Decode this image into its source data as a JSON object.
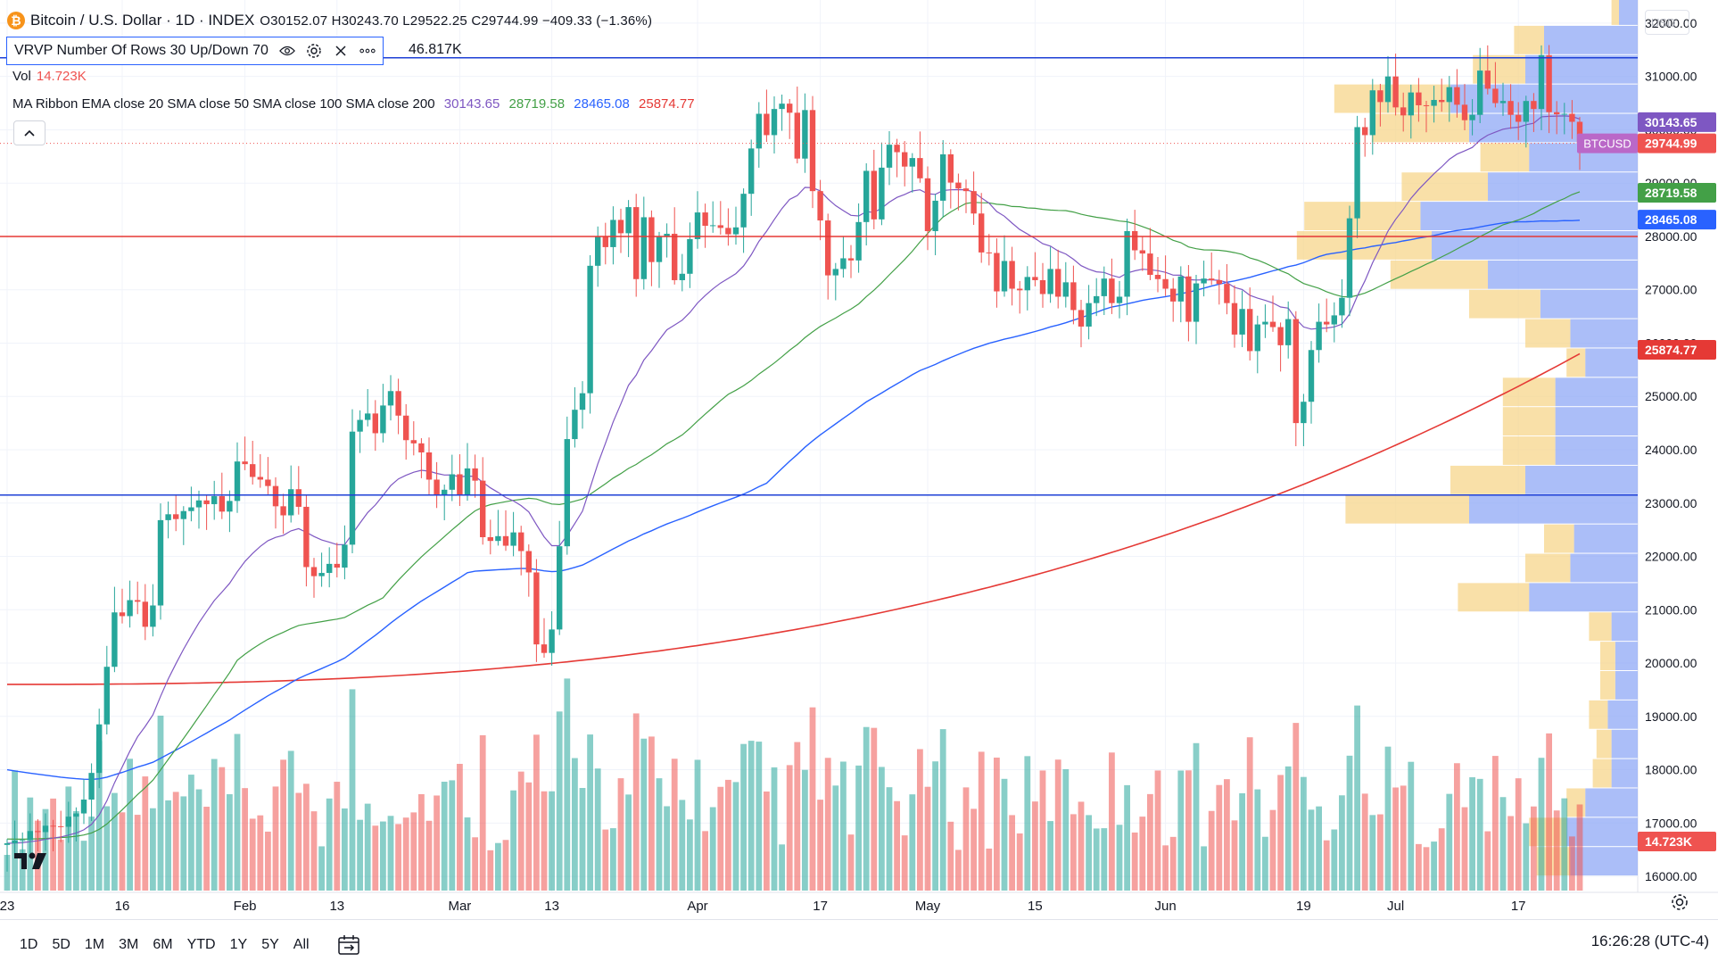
{
  "header": {
    "title": "Bitcoin / U.S. Dollar · 1D · INDEX",
    "ohlc": "O30152.07 H30243.70 L29522.25 C29744.99 −409.33 (−1.36%)",
    "vrvp_label": "VRVP Number Of Rows 30 Up/Down 70",
    "vrvp_value": "46.817K",
    "vol_label": "Vol",
    "vol_value": "14.723K",
    "ma_label": "MA Ribbon EMA close 20 SMA close 50 SMA close 100 SMA close 200",
    "ma_values": [
      "30143.65",
      "28719.58",
      "28465.08",
      "25874.77"
    ],
    "currency": "USD"
  },
  "toolbar": {
    "timeframes": [
      "1D",
      "5D",
      "1M",
      "3M",
      "6M",
      "YTD",
      "1Y",
      "5Y",
      "All"
    ],
    "clock": "16:26:28 (UTC-4)"
  },
  "colors": {
    "up": "#26a69a",
    "down": "#ef5350",
    "ema20": "#7e57c2",
    "sma50": "#43a047",
    "sma100": "#2962ff",
    "sma200": "#e53935",
    "vp_up": "#f7d58b",
    "vp_down": "#8fa8f5",
    "hline_blue": "#1e40d6",
    "hline_red": "#e53935"
  },
  "chart_data": {
    "type": "candlestick",
    "symbol": "BTCUSD",
    "ylim": [
      15700,
      32300
    ],
    "y_ticks": [
      "16000.00",
      "17000.00",
      "18000.00",
      "19000.00",
      "20000.00",
      "21000.00",
      "22000.00",
      "23000.00",
      "24000.00",
      "25000.00",
      "26000.00",
      "27000.00",
      "28000.00",
      "29000.00",
      "30000.00",
      "31000.00",
      "32000.00"
    ],
    "x_labels": [
      {
        "label": "23",
        "day": 0
      },
      {
        "label": "16",
        "day": 15
      },
      {
        "label": "Feb",
        "day": 31
      },
      {
        "label": "13",
        "day": 43
      },
      {
        "label": "Mar",
        "day": 59
      },
      {
        "label": "13",
        "day": 71
      },
      {
        "label": "Apr",
        "day": 90
      },
      {
        "label": "17",
        "day": 106
      },
      {
        "label": "May",
        "day": 120
      },
      {
        "label": "15",
        "day": 134
      },
      {
        "label": "Jun",
        "day": 151
      },
      {
        "label": "19",
        "day": 169
      },
      {
        "label": "Jul",
        "day": 181
      },
      {
        "label": "17",
        "day": 197
      }
    ],
    "close": [
      16620,
      16670,
      16680,
      16850,
      16830,
      16950,
      16940,
      16930,
      17120,
      17180,
      17440,
      17940,
      18850,
      19930,
      20950,
      20880,
      21180,
      21150,
      20680,
      21080,
      22680,
      22790,
      22700,
      22850,
      22920,
      23050,
      22980,
      23130,
      22840,
      23040,
      23780,
      23730,
      23490,
      23440,
      23320,
      22940,
      22770,
      23260,
      22930,
      21800,
      21630,
      21690,
      21860,
      21790,
      22220,
      24340,
      24560,
      24680,
      24310,
      24830,
      25100,
      24640,
      24180,
      24120,
      23950,
      23440,
      23160,
      23250,
      23540,
      23150,
      23650,
      23420,
      22360,
      22290,
      22380,
      22200,
      22450,
      22100,
      21700,
      20350,
      20190,
      20630,
      22190,
      24200,
      24750,
      25060,
      27450,
      28000,
      27800,
      28310,
      28060,
      28550,
      27200,
      28360,
      27520,
      27990,
      28050,
      27180,
      27300,
      27950,
      28450,
      28200,
      28210,
      28160,
      28040,
      28170,
      28800,
      29650,
      30300,
      29900,
      30390,
      30490,
      30320,
      29460,
      30370,
      28850,
      28300,
      27270,
      27390,
      27590,
      27550,
      28270,
      29230,
      28320,
      29290,
      29720,
      29580,
      29310,
      29470,
      29090,
      28100,
      28670,
      29540,
      29010,
      28900,
      28850,
      28430,
      27700,
      27690,
      26970,
      27540,
      27020,
      26990,
      27240,
      27180,
      26920,
      27390,
      26870,
      27140,
      26620,
      26310,
      26750,
      26880,
      27210,
      26750,
      26870,
      28100,
      27740,
      27680,
      27280,
      27200,
      27020,
      26780,
      27250,
      26400,
      27120,
      27210,
      27180,
      27110,
      26750,
      26160,
      26640,
      25850,
      26350,
      26400,
      26300,
      25960,
      26450,
      24500,
      24900,
      25870,
      26400,
      26350,
      26520,
      26850,
      28340,
      30050,
      29900,
      30740,
      30520,
      31000,
      30420,
      30270,
      30700,
      30460,
      30450,
      30560,
      30520,
      30800,
      30470,
      30180,
      30280,
      31110,
      30770,
      30500,
      30540,
      30280,
      30150,
      30540,
      30390,
      31400,
      30330,
      30290,
      30300,
      30150,
      29740
    ],
    "open_offsets_note": "",
    "ema20_last": 30143.65,
    "sma50_last": 28719.58,
    "sma100_last": 28465.08,
    "sma200_last": 25874.77,
    "last_price": 29744.99,
    "axis_labels": [
      {
        "text": "30143.65",
        "value": 30143.65,
        "color": "#7e57c2"
      },
      {
        "text": "29744.99",
        "value": 29744.99,
        "color": "#ef5350"
      },
      {
        "text": "28719.58",
        "value": 28719.58,
        "color": "#43a047"
      },
      {
        "text": "28465.08",
        "value": 28465.08,
        "color": "#2962ff"
      },
      {
        "text": "25874.77",
        "value": 25874.77,
        "color": "#e53935"
      },
      {
        "text": "14.723K",
        "value": 14723,
        "color": "#ef5350"
      }
    ],
    "price_tag_label": "BTCUSD",
    "horizontal_lines": [
      {
        "price": 31350,
        "color": "#1e40d6"
      },
      {
        "price": 28000,
        "color": "#e53935"
      },
      {
        "price": 23150,
        "color": "#1e40d6"
      }
    ],
    "volume_profile": {
      "row_height": 550,
      "rows": [
        {
          "low": 16000,
          "up": 0.09,
          "down": 0.18
        },
        {
          "low": 16550,
          "up": 0.1,
          "down": 0.19
        },
        {
          "low": 17100,
          "up": 0.05,
          "down": 0.14
        },
        {
          "low": 17650,
          "up": 0.05,
          "down": 0.07
        },
        {
          "low": 18200,
          "up": 0.04,
          "down": 0.07
        },
        {
          "low": 18750,
          "up": 0.05,
          "down": 0.08
        },
        {
          "low": 19300,
          "up": 0.04,
          "down": 0.06
        },
        {
          "low": 19850,
          "up": 0.04,
          "down": 0.06
        },
        {
          "low": 20400,
          "up": 0.06,
          "down": 0.07
        },
        {
          "low": 20950,
          "up": 0.19,
          "down": 0.29
        },
        {
          "low": 21500,
          "up": 0.12,
          "down": 0.18
        },
        {
          "low": 22050,
          "up": 0.08,
          "down": 0.17
        },
        {
          "low": 22600,
          "up": 0.33,
          "down": 0.45
        },
        {
          "low": 23150,
          "up": 0.2,
          "down": 0.3
        },
        {
          "low": 23700,
          "up": 0.14,
          "down": 0.22
        },
        {
          "low": 24250,
          "up": 0.14,
          "down": 0.22
        },
        {
          "low": 24800,
          "up": 0.14,
          "down": 0.22
        },
        {
          "low": 25350,
          "up": 0.05,
          "down": 0.14
        },
        {
          "low": 25900,
          "up": 0.12,
          "down": 0.18
        },
        {
          "low": 26450,
          "up": 0.19,
          "down": 0.26
        },
        {
          "low": 27000,
          "up": 0.26,
          "down": 0.4
        },
        {
          "low": 27550,
          "up": 0.36,
          "down": 0.55
        },
        {
          "low": 28100,
          "up": 0.31,
          "down": 0.58
        },
        {
          "low": 28650,
          "up": 0.23,
          "down": 0.4
        },
        {
          "low": 29200,
          "up": 0.13,
          "down": 0.29
        },
        {
          "low": 29750,
          "up": 0.26,
          "down": 0.45
        },
        {
          "low": 30300,
          "up": 0.31,
          "down": 0.5
        },
        {
          "low": 30850,
          "up": 0.14,
          "down": 0.3
        },
        {
          "low": 31400,
          "up": 0.08,
          "down": 0.25
        },
        {
          "low": 31950,
          "up": 0.02,
          "down": 0.05
        }
      ]
    }
  }
}
